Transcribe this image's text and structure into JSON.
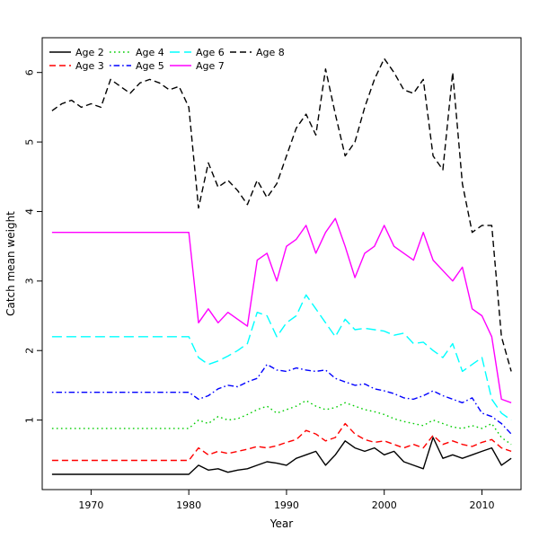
{
  "chart_data": {
    "type": "line",
    "title": "",
    "xlabel": "Year",
    "ylabel": "Catch mean weight",
    "xlim": [
      1965,
      2014
    ],
    "ylim": [
      0,
      6.5
    ],
    "x_ticks": [
      1970,
      1980,
      1990,
      2000,
      2010
    ],
    "y_ticks": [
      1,
      2,
      3,
      4,
      5,
      6
    ],
    "grid": false,
    "legend_position": "top-left",
    "legend_columns": 4,
    "x": [
      1966,
      1967,
      1968,
      1969,
      1970,
      1971,
      1972,
      1973,
      1974,
      1975,
      1976,
      1977,
      1978,
      1979,
      1980,
      1981,
      1982,
      1983,
      1984,
      1985,
      1986,
      1987,
      1988,
      1989,
      1990,
      1991,
      1992,
      1993,
      1994,
      1995,
      1996,
      1997,
      1998,
      1999,
      2000,
      2001,
      2002,
      2003,
      2004,
      2005,
      2006,
      2007,
      2008,
      2009,
      2010,
      2011,
      2012,
      2013
    ],
    "series": [
      {
        "name": "Age 2",
        "color": "#000000",
        "linestyle": "solid",
        "values": [
          0.22,
          0.22,
          0.22,
          0.22,
          0.22,
          0.22,
          0.22,
          0.22,
          0.22,
          0.22,
          0.22,
          0.22,
          0.22,
          0.22,
          0.22,
          0.35,
          0.28,
          0.3,
          0.25,
          0.28,
          0.3,
          0.35,
          0.4,
          0.38,
          0.35,
          0.45,
          0.5,
          0.55,
          0.35,
          0.5,
          0.7,
          0.6,
          0.55,
          0.6,
          0.5,
          0.55,
          0.4,
          0.35,
          0.3,
          0.75,
          0.45,
          0.5,
          0.45,
          0.5,
          0.55,
          0.6,
          0.35,
          0.45
        ]
      },
      {
        "name": "Age 3",
        "color": "#FF0000",
        "linestyle": "dashed",
        "values": [
          0.42,
          0.42,
          0.42,
          0.42,
          0.42,
          0.42,
          0.42,
          0.42,
          0.42,
          0.42,
          0.42,
          0.42,
          0.42,
          0.42,
          0.42,
          0.6,
          0.5,
          0.55,
          0.52,
          0.55,
          0.58,
          0.62,
          0.6,
          0.63,
          0.68,
          0.72,
          0.85,
          0.8,
          0.7,
          0.75,
          0.95,
          0.8,
          0.72,
          0.68,
          0.7,
          0.65,
          0.6,
          0.65,
          0.6,
          0.78,
          0.65,
          0.7,
          0.65,
          0.62,
          0.68,
          0.72,
          0.6,
          0.55
        ]
      },
      {
        "name": "Age 4",
        "color": "#00CD00",
        "linestyle": "dotted",
        "values": [
          0.88,
          0.88,
          0.88,
          0.88,
          0.88,
          0.88,
          0.88,
          0.88,
          0.88,
          0.88,
          0.88,
          0.88,
          0.88,
          0.88,
          0.88,
          1.0,
          0.95,
          1.05,
          1.0,
          1.02,
          1.08,
          1.15,
          1.2,
          1.1,
          1.15,
          1.2,
          1.28,
          1.2,
          1.15,
          1.18,
          1.25,
          1.2,
          1.15,
          1.12,
          1.08,
          1.02,
          0.98,
          0.95,
          0.92,
          1.0,
          0.95,
          0.9,
          0.88,
          0.92,
          0.88,
          0.95,
          0.75,
          0.65
        ]
      },
      {
        "name": "Age 5",
        "color": "#0000FF",
        "linestyle": "dashdot",
        "values": [
          1.4,
          1.4,
          1.4,
          1.4,
          1.4,
          1.4,
          1.4,
          1.4,
          1.4,
          1.4,
          1.4,
          1.4,
          1.4,
          1.4,
          1.4,
          1.3,
          1.35,
          1.45,
          1.5,
          1.48,
          1.55,
          1.6,
          1.8,
          1.72,
          1.7,
          1.75,
          1.72,
          1.7,
          1.72,
          1.6,
          1.55,
          1.5,
          1.52,
          1.45,
          1.42,
          1.38,
          1.32,
          1.3,
          1.35,
          1.42,
          1.35,
          1.3,
          1.25,
          1.32,
          1.1,
          1.05,
          0.95,
          0.8
        ]
      },
      {
        "name": "Age 6",
        "color": "#00FFFF",
        "linestyle": "longdash",
        "values": [
          2.2,
          2.2,
          2.2,
          2.2,
          2.2,
          2.2,
          2.2,
          2.2,
          2.2,
          2.2,
          2.2,
          2.2,
          2.2,
          2.2,
          2.2,
          1.9,
          1.8,
          1.85,
          1.92,
          2.0,
          2.1,
          2.55,
          2.5,
          2.2,
          2.4,
          2.5,
          2.8,
          2.6,
          2.4,
          2.2,
          2.45,
          2.3,
          2.32,
          2.3,
          2.28,
          2.22,
          2.25,
          2.1,
          2.12,
          2.0,
          1.9,
          2.1,
          1.7,
          1.8,
          1.9,
          1.3,
          1.1,
          1.0
        ]
      },
      {
        "name": "Age 7",
        "color": "#FF00FF",
        "linestyle": "solid",
        "values": [
          3.7,
          3.7,
          3.7,
          3.7,
          3.7,
          3.7,
          3.7,
          3.7,
          3.7,
          3.7,
          3.7,
          3.7,
          3.7,
          3.7,
          3.7,
          2.4,
          2.6,
          2.4,
          2.55,
          2.45,
          2.35,
          3.3,
          3.4,
          3.0,
          3.5,
          3.6,
          3.8,
          3.4,
          3.7,
          3.9,
          3.5,
          3.05,
          3.4,
          3.5,
          3.8,
          3.5,
          3.4,
          3.3,
          3.7,
          3.3,
          3.15,
          3.0,
          3.2,
          2.6,
          2.5,
          2.2,
          1.3,
          1.25
        ]
      },
      {
        "name": "Age 8",
        "color": "#000000",
        "linestyle": "dashed",
        "values": [
          5.45,
          5.55,
          5.6,
          5.5,
          5.55,
          5.5,
          5.9,
          5.8,
          5.7,
          5.85,
          5.9,
          5.85,
          5.75,
          5.8,
          5.5,
          4.05,
          4.7,
          4.35,
          4.45,
          4.3,
          4.1,
          4.45,
          4.2,
          4.4,
          4.8,
          5.2,
          5.4,
          5.1,
          6.05,
          5.4,
          4.8,
          5.0,
          5.5,
          5.9,
          6.2,
          6.0,
          5.75,
          5.7,
          5.9,
          4.8,
          4.6,
          6.0,
          4.4,
          3.7,
          3.8,
          3.8,
          2.2,
          1.7
        ]
      }
    ]
  }
}
